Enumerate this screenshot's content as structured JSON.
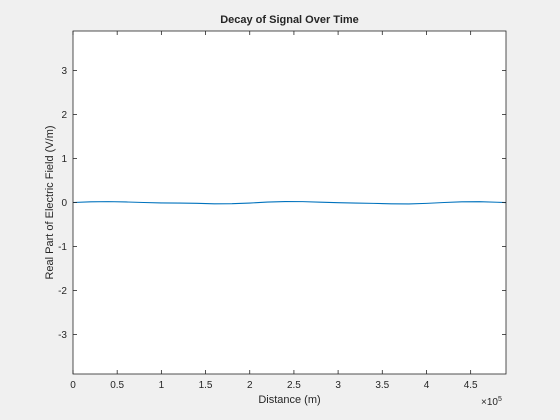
{
  "chart_data": {
    "type": "line",
    "title": "Decay of Signal Over Time",
    "xlabel": "Distance (m)",
    "ylabel": "Real Part of Electric Field (V/m)",
    "x_exponent_label": "×10",
    "x_exponent_power": "5",
    "xlim": [
      0,
      490000
    ],
    "ylim": [
      -3.9,
      3.9
    ],
    "xticks": [
      0,
      50000,
      100000,
      150000,
      200000,
      250000,
      300000,
      350000,
      400000,
      450000
    ],
    "xtick_labels": [
      "0",
      "0.5",
      "1",
      "1.5",
      "2",
      "2.5",
      "3",
      "3.5",
      "4",
      "4.5"
    ],
    "yticks": [
      -3,
      -2,
      -1,
      0,
      1,
      2,
      3
    ],
    "ytick_labels": [
      "-3",
      "-2",
      "-1",
      "0",
      "1",
      "2",
      "3"
    ],
    "grid": false,
    "series": [
      {
        "color": "#0072bd",
        "x": [
          0,
          20000,
          40000,
          60000,
          80000,
          100000,
          120000,
          140000,
          160000,
          180000,
          200000,
          220000,
          240000,
          260000,
          280000,
          300000,
          320000,
          340000,
          360000,
          380000,
          400000,
          420000,
          440000,
          460000,
          480000,
          490000
        ],
        "y": [
          0.0,
          0.015,
          0.02,
          0.012,
          0.0,
          -0.01,
          -0.012,
          -0.018,
          -0.03,
          -0.028,
          -0.012,
          0.01,
          0.022,
          0.02,
          0.008,
          -0.004,
          -0.012,
          -0.02,
          -0.03,
          -0.032,
          -0.02,
          0.0,
          0.015,
          0.018,
          0.006,
          -0.002
        ]
      }
    ]
  }
}
